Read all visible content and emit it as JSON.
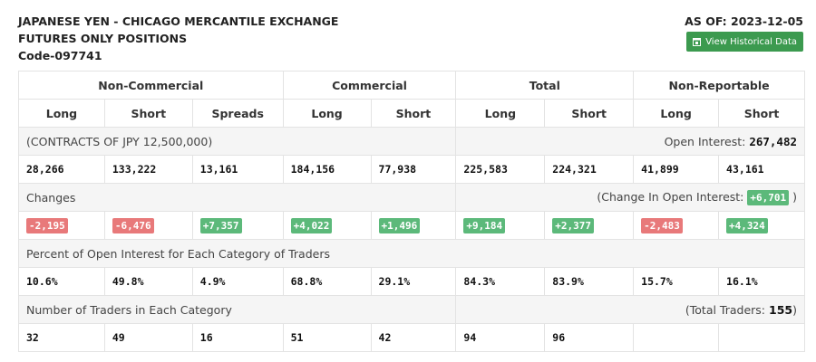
{
  "header": {
    "title_line1": "JAPANESE YEN - CHICAGO MERCANTILE EXCHANGE",
    "title_line2": "FUTURES ONLY POSITIONS",
    "code": "Code-097741",
    "as_of": "AS OF: 2023-12-05",
    "history_button": "View Historical Data",
    "history_icon": "calendar-icon"
  },
  "groups": [
    "Non-Commercial",
    "Commercial",
    "Total",
    "Non-Reportable"
  ],
  "columns": [
    "Long",
    "Short",
    "Spreads",
    "Long",
    "Short",
    "Long",
    "Short",
    "Long",
    "Short"
  ],
  "contracts": {
    "label": "(CONTRACTS OF JPY 12,500,000)",
    "oi_label": "Open Interest:",
    "oi_value": "267,482",
    "values": [
      "28,266",
      "133,222",
      "13,161",
      "184,156",
      "77,938",
      "225,583",
      "224,321",
      "41,899",
      "43,161"
    ]
  },
  "changes": {
    "label": "Changes",
    "oi_label": "(Change In Open Interest:",
    "oi_value": "+6,701",
    "oi_close": ")",
    "values": [
      "-2,195",
      "-6,476",
      "+7,357",
      "+4,022",
      "+1,496",
      "+9,184",
      "+2,377",
      "-2,483",
      "+4,324"
    ],
    "colors": {
      "negative": "#e8797a",
      "positive": "#5cb97a"
    }
  },
  "percent": {
    "label": "Percent of Open Interest for Each Category of Traders",
    "values": [
      "10.6%",
      "49.8%",
      "4.9%",
      "68.8%",
      "29.1%",
      "84.3%",
      "83.9%",
      "15.7%",
      "16.1%"
    ]
  },
  "traders": {
    "label": "Number of Traders in Each Category",
    "total_label": "(Total Traders:",
    "total_value": "155",
    "total_close": ")",
    "values": [
      "32",
      "49",
      "16",
      "51",
      "42",
      "94",
      "96",
      "",
      ""
    ]
  }
}
